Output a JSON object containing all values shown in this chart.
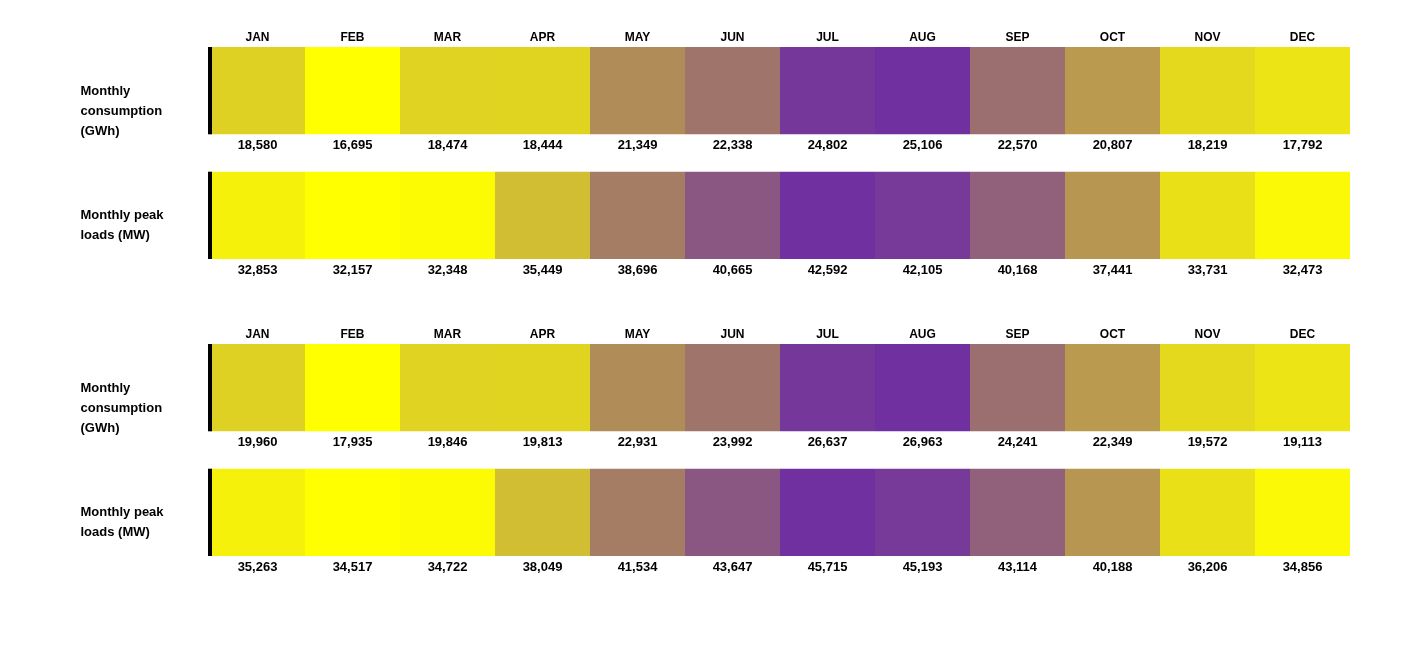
{
  "chart_data": [
    {
      "type": "heatmap",
      "categories": [
        "JAN",
        "FEB",
        "MAR",
        "APR",
        "MAY",
        "JUN",
        "JUL",
        "AUG",
        "SEP",
        "OCT",
        "NOV",
        "DEC"
      ],
      "y_categories": [
        "Monthly consumption (GWh)",
        "Monthly peak loads (MW)"
      ],
      "cells": [
        [
          18580,
          16695,
          18474,
          18444,
          21349,
          22338,
          24802,
          25106,
          22570,
          20807,
          18219,
          17792
        ],
        [
          32853,
          32157,
          32348,
          35449,
          38696,
          40665,
          42592,
          42105,
          40168,
          37441,
          33731,
          32473
        ]
      ],
      "cell_labels": [
        [
          "18,580",
          "16,695",
          "18,474",
          "18,444",
          "21,349",
          "22,338",
          "24,802",
          "25,106",
          "22,570",
          "20,807",
          "18,219",
          "17,792"
        ],
        [
          "32,853",
          "32,157",
          "32,348",
          "35,449",
          "38,696",
          "40,665",
          "42,592",
          "42,105",
          "40,168",
          "37,441",
          "33,731",
          "32,473"
        ]
      ]
    },
    {
      "type": "heatmap",
      "categories": [
        "JAN",
        "FEB",
        "MAR",
        "APR",
        "MAY",
        "JUN",
        "JUL",
        "AUG",
        "SEP",
        "OCT",
        "NOV",
        "DEC"
      ],
      "y_categories": [
        "Monthly consumption (GWh)",
        "Monthly peak loads (MW)"
      ],
      "cells": [
        [
          19960,
          17935,
          19846,
          19813,
          22931,
          23992,
          26637,
          26963,
          24241,
          22349,
          19572,
          19113
        ],
        [
          35263,
          34517,
          34722,
          38049,
          41534,
          43647,
          45715,
          45193,
          43114,
          40188,
          36206,
          34856
        ]
      ],
      "cell_labels": [
        [
          "19,960",
          "17,935",
          "19,846",
          "19,813",
          "22,931",
          "23,992",
          "26,637",
          "26,963",
          "24,241",
          "22,349",
          "19,572",
          "19,113"
        ],
        [
          "35,263",
          "34,517",
          "34,722",
          "38,049",
          "41,534",
          "43,647",
          "45,715",
          "45,193",
          "43,114",
          "40,188",
          "36,206",
          "34,856"
        ]
      ]
    }
  ]
}
